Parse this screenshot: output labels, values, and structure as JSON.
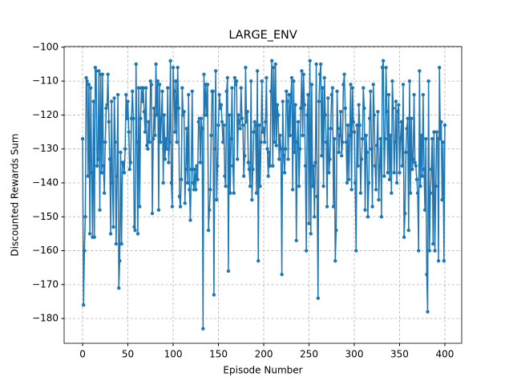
{
  "chart_data": {
    "type": "line",
    "title": "LARGE_ENV",
    "x_label": "Episode Number",
    "y_label": "Discounted Rewards Sum",
    "xlim": [
      -20.4,
      418.6
    ],
    "ylim": [
      -187.3,
      -99.8
    ],
    "xticks": [
      0,
      50,
      100,
      150,
      200,
      250,
      300,
      350,
      400
    ],
    "yticks": [
      {
        "value": -180,
        "label": "−180"
      },
      {
        "value": -170,
        "label": "−170"
      },
      {
        "value": -160,
        "label": "−160"
      },
      {
        "value": -150,
        "label": "−150"
      },
      {
        "value": -140,
        "label": "−140"
      },
      {
        "value": -130,
        "label": "−130"
      },
      {
        "value": -120,
        "label": "−120"
      },
      {
        "value": -110,
        "label": "−110"
      },
      {
        "value": -100,
        "label": "−100"
      }
    ],
    "grid": true,
    "x": [
      0,
      1,
      2,
      3,
      4,
      5,
      6,
      7,
      8,
      9,
      10,
      11,
      12,
      13,
      14,
      15,
      16,
      17,
      18,
      19,
      20,
      21,
      22,
      23,
      24,
      25,
      26,
      27,
      28,
      29,
      30,
      31,
      32,
      33,
      34,
      35,
      36,
      37,
      38,
      39,
      40,
      41,
      42,
      43,
      44,
      45,
      46,
      47,
      48,
      49,
      50,
      51,
      52,
      53,
      54,
      55,
      56,
      57,
      58,
      59,
      60,
      61,
      62,
      63,
      64,
      65,
      66,
      67,
      68,
      69,
      70,
      71,
      72,
      73,
      74,
      75,
      76,
      77,
      78,
      79,
      80,
      81,
      82,
      83,
      84,
      85,
      86,
      87,
      88,
      89,
      90,
      91,
      92,
      93,
      94,
      95,
      96,
      97,
      98,
      99,
      100,
      101,
      102,
      103,
      104,
      105,
      106,
      107,
      108,
      109,
      110,
      111,
      112,
      113,
      114,
      115,
      116,
      117,
      118,
      119,
      120,
      121,
      122,
      123,
      124,
      125,
      126,
      127,
      128,
      129,
      130,
      131,
      132,
      133,
      134,
      135,
      136,
      137,
      138,
      139,
      140,
      141,
      142,
      143,
      144,
      145,
      146,
      147,
      148,
      149,
      150,
      151,
      152,
      153,
      154,
      155,
      156,
      157,
      158,
      159,
      160,
      161,
      162,
      163,
      164,
      165,
      166,
      167,
      168,
      169,
      170,
      171,
      172,
      173,
      174,
      175,
      176,
      177,
      178,
      179,
      180,
      181,
      182,
      183,
      184,
      185,
      186,
      187,
      188,
      189,
      190,
      191,
      192,
      193,
      194,
      195,
      196,
      197,
      198,
      199,
      200,
      201,
      202,
      203,
      204,
      205,
      206,
      207,
      208,
      209,
      210,
      211,
      212,
      213,
      214,
      215,
      216,
      217,
      218,
      219,
      220,
      221,
      222,
      223,
      224,
      225,
      226,
      227,
      228,
      229,
      230,
      231,
      232,
      233,
      234,
      235,
      236,
      237,
      238,
      239,
      240,
      241,
      242,
      243,
      244,
      245,
      246,
      247,
      248,
      249,
      250,
      251,
      252,
      253,
      254,
      255,
      256,
      257,
      258,
      259,
      260,
      261,
      262,
      263,
      264,
      265,
      266,
      267,
      268,
      269,
      270,
      271,
      272,
      273,
      274,
      275,
      276,
      277,
      278,
      279,
      280,
      281,
      282,
      283,
      284,
      285,
      286,
      287,
      288,
      289,
      290,
      291,
      292,
      293,
      294,
      295,
      296,
      297,
      298,
      299,
      300,
      301,
      302,
      303,
      304,
      305,
      306,
      307,
      308,
      309,
      310,
      311,
      312,
      313,
      314,
      315,
      316,
      317,
      318,
      319,
      320,
      321,
      322,
      323,
      324,
      325,
      326,
      327,
      328,
      329,
      330,
      331,
      332,
      333,
      334,
      335,
      336,
      337,
      338,
      339,
      340,
      341,
      342,
      343,
      344,
      345,
      346,
      347,
      348,
      349,
      350,
      351,
      352,
      353,
      354,
      355,
      356,
      357,
      358,
      359,
      360,
      361,
      362,
      363,
      364,
      365,
      366,
      367,
      368,
      369,
      370,
      371,
      372,
      373,
      374,
      375,
      376,
      377,
      378,
      379,
      380,
      381,
      382,
      383,
      384,
      385,
      386,
      387,
      388,
      389,
      390,
      391,
      392,
      393,
      394,
      395,
      396,
      397,
      398,
      399,
      400
    ],
    "series": [
      {
        "name": "Discounted Rewards Sum",
        "color": "#1f77b4",
        "values": [
          -127,
          -176,
          -160,
          -150,
          -109,
          -110,
          -138,
          -111,
          -155,
          -112,
          -137,
          -156,
          -116,
          -156,
          -106,
          -107,
          -135,
          -133,
          -107,
          -148,
          -108,
          -137,
          -108,
          -135,
          -143,
          -128,
          -118,
          -117,
          -108,
          -122,
          -133,
          -155,
          -116,
          -140,
          -153,
          -115,
          -128,
          -158,
          -138,
          -114,
          -171,
          -163,
          -131,
          -158,
          -134,
          -134,
          -137,
          -130,
          -114,
          -121,
          -116,
          -125,
          -136,
          -134,
          -121,
          -113,
          -121,
          -153,
          -154,
          -105,
          -128,
          -155,
          -112,
          -147,
          -121,
          -112,
          -116,
          -112,
          -119,
          -125,
          -112,
          -129,
          -130,
          -122,
          -128,
          -110,
          -111,
          -149,
          -127,
          -118,
          -126,
          -105,
          -120,
          -110,
          -148,
          -111,
          -128,
          -121,
          -113,
          -140,
          -120,
          -133,
          -127,
          -130,
          -112,
          -134,
          -128,
          -104,
          -140,
          -147,
          -106,
          -113,
          -125,
          -110,
          -128,
          -106,
          -118,
          -144,
          -147,
          -139,
          -112,
          -120,
          -119,
          -146,
          -136,
          -124,
          -140,
          -114,
          -142,
          -151,
          -136,
          -113,
          -140,
          -142,
          -136,
          -142,
          -135,
          -139,
          -122,
          -121,
          -134,
          -121,
          -124,
          -183,
          -108,
          -120,
          -111,
          -120,
          -111,
          -154,
          -148,
          -142,
          -126,
          -113,
          -113,
          -173,
          -130,
          -107,
          -145,
          -135,
          -123,
          -114,
          -118,
          -117,
          -122,
          -128,
          -123,
          -138,
          -141,
          -113,
          -109,
          -166,
          -120,
          -143,
          -127,
          -112,
          -135,
          -143,
          -109,
          -111,
          -110,
          -133,
          -120,
          -122,
          -124,
          -112,
          -121,
          -123,
          -138,
          -132,
          -106,
          -122,
          -119,
          -134,
          -136,
          -141,
          -110,
          -145,
          -136,
          -125,
          -122,
          -123,
          -143,
          -107,
          -163,
          -123,
          -141,
          -128,
          -110,
          -125,
          -124,
          -128,
          -122,
          -109,
          -130,
          -138,
          -131,
          -135,
          -113,
          -104,
          -135,
          -106,
          -128,
          -105,
          -129,
          -117,
          -120,
          -133,
          -126,
          -130,
          -167,
          -116,
          -132,
          -137,
          -130,
          -113,
          -116,
          -133,
          -114,
          -126,
          -114,
          -109,
          -142,
          -110,
          -131,
          -117,
          -157,
          -128,
          -122,
          -141,
          -130,
          -118,
          -107,
          -126,
          -108,
          -117,
          -135,
          -160,
          -120,
          -114,
          -152,
          -104,
          -155,
          -111,
          -141,
          -135,
          -150,
          -134,
          -105,
          -144,
          -174,
          -116,
          -108,
          -105,
          -132,
          -112,
          -141,
          -109,
          -120,
          -128,
          -147,
          -115,
          -137,
          -133,
          -124,
          -114,
          -112,
          -147,
          -127,
          -163,
          -154,
          -113,
          -124,
          -131,
          -126,
          -119,
          -132,
          -128,
          -111,
          -108,
          -118,
          -128,
          -140,
          -123,
          -139,
          -126,
          -111,
          -142,
          -112,
          -122,
          -125,
          -140,
          -160,
          -123,
          -135,
          -117,
          -123,
          -143,
          -133,
          -127,
          -112,
          -118,
          -148,
          -126,
          -131,
          -150,
          -140,
          -121,
          -113,
          -130,
          -147,
          -111,
          -120,
          -135,
          -142,
          -129,
          -119,
          -145,
          -135,
          -127,
          -150,
          -106,
          -104,
          -138,
          -127,
          -106,
          -119,
          -137,
          -114,
          -139,
          -126,
          -143,
          -110,
          -118,
          -137,
          -128,
          -116,
          -140,
          -119,
          -117,
          -137,
          -127,
          -122,
          -135,
          -111,
          -156,
          -149,
          -131,
          -124,
          -121,
          -154,
          -110,
          -143,
          -121,
          -136,
          -133,
          -114,
          -134,
          -135,
          -139,
          -143,
          -160,
          -107,
          -141,
          -126,
          -138,
          -114,
          -136,
          -148,
          -127,
          -167,
          -178,
          -110,
          -160,
          -143,
          -136,
          -127,
          -158,
          -125,
          -160,
          -141,
          -125,
          -127,
          -163,
          -106,
          -127,
          -122,
          -145,
          -128,
          -163,
          -123
        ]
      }
    ]
  }
}
